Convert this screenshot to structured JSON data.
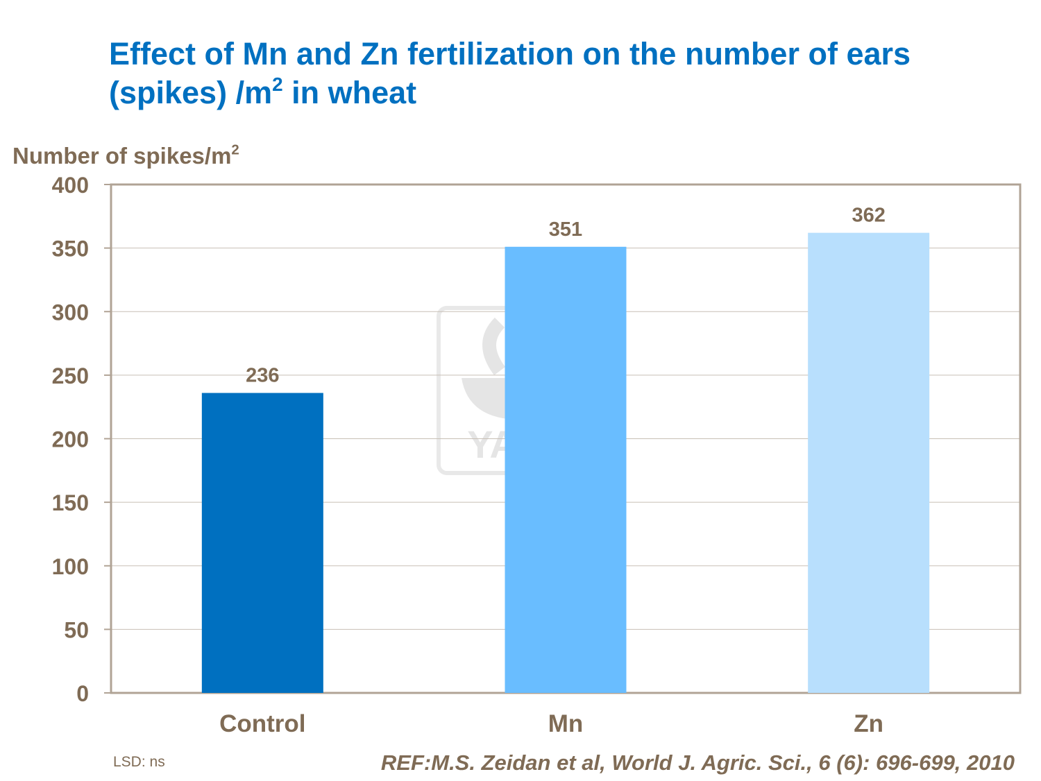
{
  "chart_data": {
    "type": "bar",
    "title": "Effect of Mn and Zn fertilization on the number of ears (spikes) /m",
    "title_sup": "2",
    "title_suffix": " in wheat",
    "ylabel": "Number of spikes/m",
    "ylabel_sup": "2",
    "xlabel": "",
    "categories": [
      "Control",
      "Mn",
      "Zn"
    ],
    "values": [
      236,
      351,
      362
    ],
    "data_labels": [
      "236",
      "351",
      "362"
    ],
    "colors": [
      "#0070c0",
      "#69bdff",
      "#b8dffd"
    ],
    "ylim": [
      0,
      400
    ],
    "yticks": [
      0,
      50,
      100,
      150,
      200,
      250,
      300,
      350,
      400
    ],
    "grid": true,
    "legend": "none"
  },
  "footnote": "LSD: ns",
  "reference": "REF:M.S. Zeidan et al, World J. Agric. Sci., 6 (6): 696-699, 2010",
  "watermark": "YARA",
  "colors": {
    "text": "#7f6b55",
    "title": "#0070c0",
    "axis": "#b0a395",
    "grid": "#c8bfb5"
  }
}
